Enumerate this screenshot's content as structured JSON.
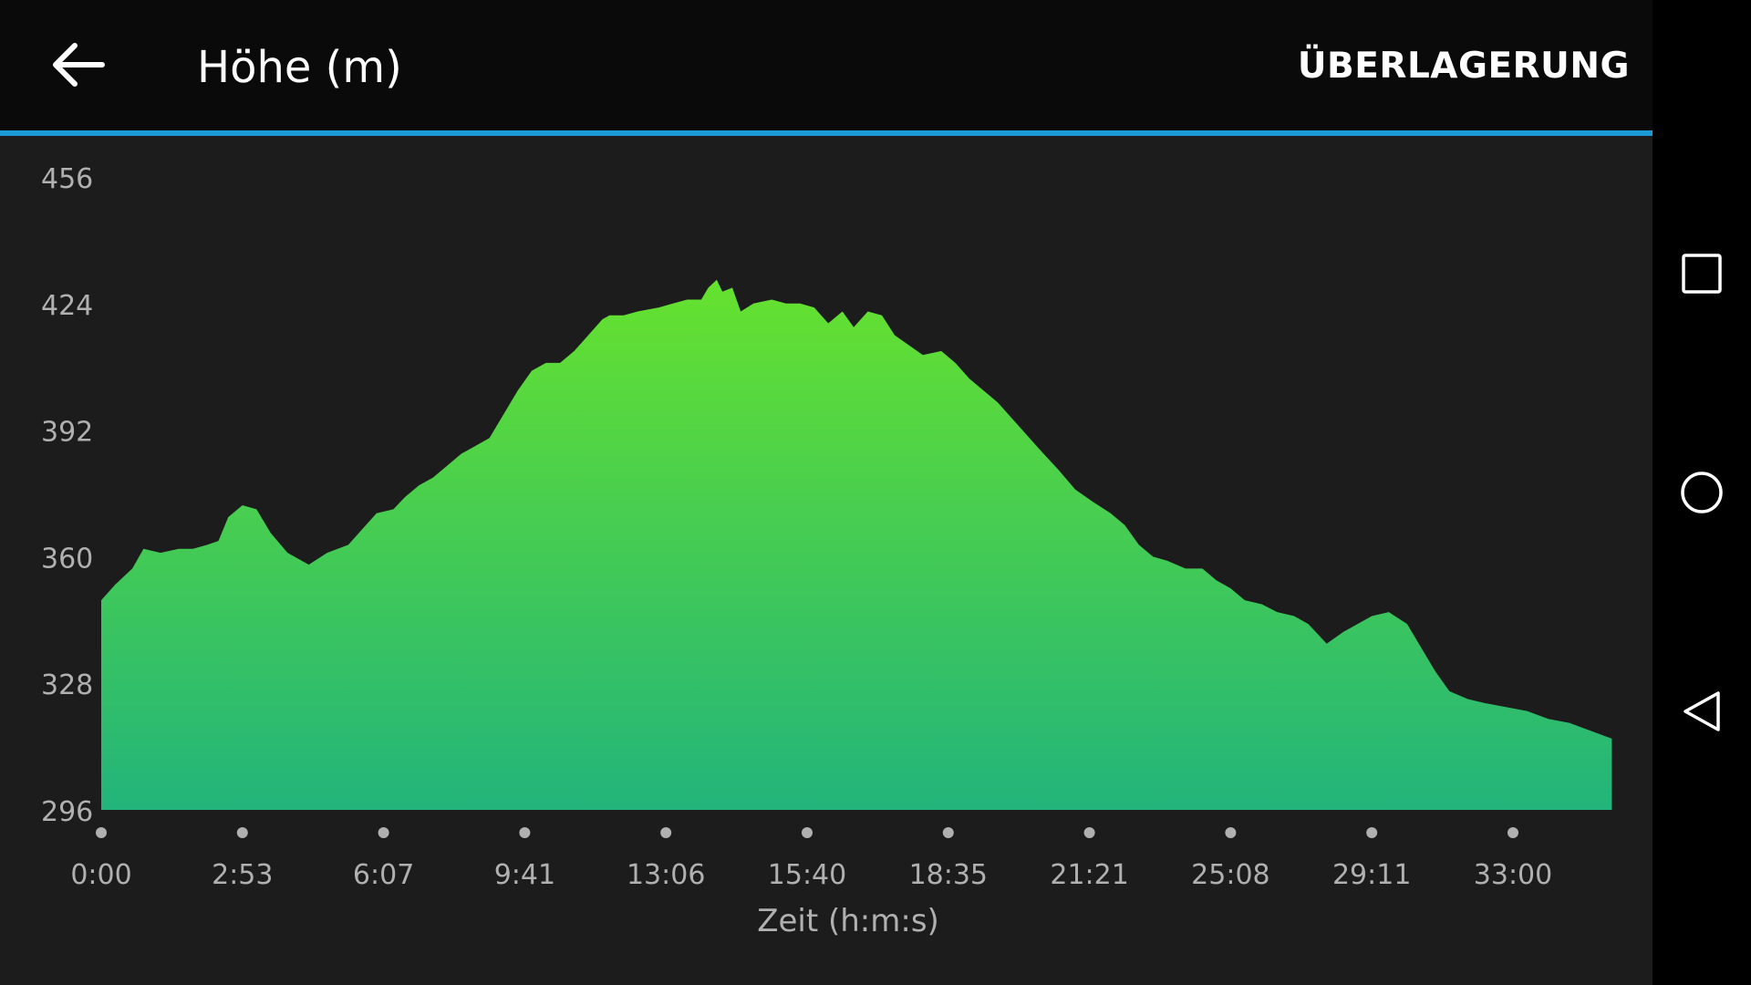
{
  "header": {
    "title": "Höhe (m)",
    "overlay_label": "ÜBERLAGERUNG"
  },
  "colors": {
    "accent": "#1a9bd6",
    "fill_top": "#66e22e",
    "fill_bottom": "#22b47b",
    "background": "#1c1c1c",
    "topbar": "#0a0a0a"
  },
  "icons": {
    "back": "arrow-left-icon",
    "recents": "square-icon",
    "home": "circle-icon",
    "nav_back": "triangle-left-icon"
  },
  "chart_data": {
    "type": "area",
    "title": "",
    "xlabel": "Zeit (h:m:s)",
    "ylabel": "",
    "ylim": [
      296,
      456
    ],
    "yticks": [
      456,
      424,
      392,
      360,
      328,
      296
    ],
    "x_tick_labels": [
      "0:00",
      "2:53",
      "6:07",
      "9:41",
      "13:06",
      "15:40",
      "18:35",
      "21:21",
      "25:08",
      "29:11",
      "33:00"
    ],
    "x_tick_positions": [
      0,
      1,
      2,
      3,
      4,
      5,
      6,
      7,
      8,
      9,
      10
    ],
    "x_end": 10.7,
    "grid": false,
    "legend": "none",
    "series": [
      {
        "values": [
          [
            0.0,
            349
          ],
          [
            0.1,
            353
          ],
          [
            0.22,
            357
          ],
          [
            0.3,
            362
          ],
          [
            0.42,
            361
          ],
          [
            0.55,
            362
          ],
          [
            0.65,
            362
          ],
          [
            0.75,
            363
          ],
          [
            0.83,
            364
          ],
          [
            0.9,
            370
          ],
          [
            1.0,
            373
          ],
          [
            1.1,
            372
          ],
          [
            1.2,
            366
          ],
          [
            1.32,
            361
          ],
          [
            1.47,
            358
          ],
          [
            1.6,
            361
          ],
          [
            1.75,
            363
          ],
          [
            1.85,
            367
          ],
          [
            1.95,
            371
          ],
          [
            2.07,
            372
          ],
          [
            2.15,
            375
          ],
          [
            2.25,
            378
          ],
          [
            2.35,
            380
          ],
          [
            2.45,
            383
          ],
          [
            2.55,
            386
          ],
          [
            2.65,
            388
          ],
          [
            2.75,
            390
          ],
          [
            2.85,
            396
          ],
          [
            2.95,
            402
          ],
          [
            3.05,
            407
          ],
          [
            3.15,
            409
          ],
          [
            3.25,
            409
          ],
          [
            3.35,
            412
          ],
          [
            3.45,
            416
          ],
          [
            3.55,
            420
          ],
          [
            3.6,
            421
          ],
          [
            3.7,
            421
          ],
          [
            3.8,
            422
          ],
          [
            3.95,
            423
          ],
          [
            4.05,
            424
          ],
          [
            4.15,
            425
          ],
          [
            4.25,
            425
          ],
          [
            4.3,
            428
          ],
          [
            4.36,
            430
          ],
          [
            4.4,
            427
          ],
          [
            4.47,
            428
          ],
          [
            4.53,
            422
          ],
          [
            4.62,
            424
          ],
          [
            4.75,
            425
          ],
          [
            4.85,
            424
          ],
          [
            4.95,
            424
          ],
          [
            5.05,
            423
          ],
          [
            5.15,
            419
          ],
          [
            5.25,
            422
          ],
          [
            5.33,
            418
          ],
          [
            5.43,
            422
          ],
          [
            5.53,
            421
          ],
          [
            5.62,
            416
          ],
          [
            5.7,
            414
          ],
          [
            5.82,
            411
          ],
          [
            5.95,
            412
          ],
          [
            6.05,
            409
          ],
          [
            6.15,
            405
          ],
          [
            6.25,
            402
          ],
          [
            6.35,
            399
          ],
          [
            6.45,
            395
          ],
          [
            6.55,
            391
          ],
          [
            6.65,
            387
          ],
          [
            6.78,
            382
          ],
          [
            6.9,
            377
          ],
          [
            7.02,
            374
          ],
          [
            7.15,
            371
          ],
          [
            7.25,
            368
          ],
          [
            7.35,
            363
          ],
          [
            7.45,
            360
          ],
          [
            7.55,
            359
          ],
          [
            7.68,
            357
          ],
          [
            7.8,
            357
          ],
          [
            7.9,
            354
          ],
          [
            8.0,
            352
          ],
          [
            8.1,
            349
          ],
          [
            8.22,
            348
          ],
          [
            8.33,
            346
          ],
          [
            8.45,
            345
          ],
          [
            8.55,
            343
          ],
          [
            8.68,
            338
          ],
          [
            8.8,
            341
          ],
          [
            8.9,
            343
          ],
          [
            9.0,
            345
          ],
          [
            9.12,
            346
          ],
          [
            9.25,
            343
          ],
          [
            9.35,
            337
          ],
          [
            9.45,
            331
          ],
          [
            9.55,
            326
          ],
          [
            9.68,
            324
          ],
          [
            9.8,
            323
          ],
          [
            9.95,
            322
          ],
          [
            10.1,
            321
          ],
          [
            10.25,
            319
          ],
          [
            10.4,
            318
          ],
          [
            10.55,
            316
          ],
          [
            10.7,
            314
          ]
        ]
      }
    ]
  },
  "axes_label_color": "#b0b0b0"
}
